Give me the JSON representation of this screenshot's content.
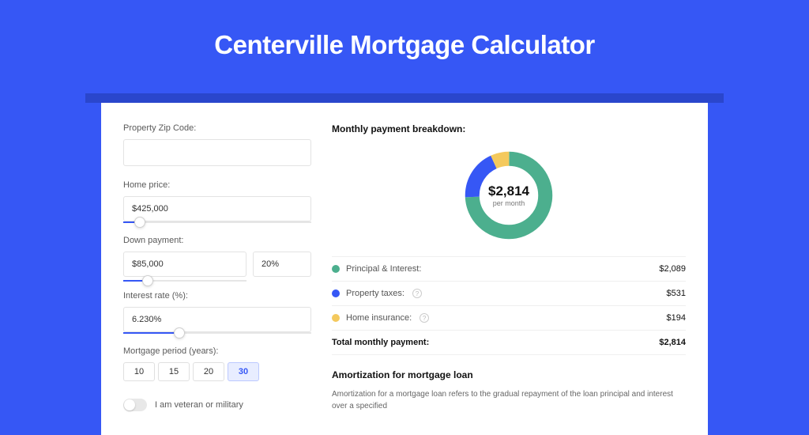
{
  "page": {
    "title": "Centerville Mortgage Calculator",
    "background_color": "#3657f5",
    "card_bg": "#ffffff",
    "shadow_color": "#2a46cc"
  },
  "form": {
    "zip": {
      "label": "Property Zip Code:",
      "value": ""
    },
    "home_price": {
      "label": "Home price:",
      "value": "$425,000",
      "slider": {
        "fill_pct": 9,
        "thumb_pct": 9
      }
    },
    "down_payment": {
      "label": "Down payment:",
      "amount": "$85,000",
      "pct": "20%",
      "slider": {
        "fill_pct": 20,
        "thumb_pct": 20
      }
    },
    "interest": {
      "label": "Interest rate (%):",
      "value": "6.230%",
      "slider": {
        "fill_pct": 30,
        "thumb_pct": 30
      }
    },
    "period": {
      "label": "Mortgage period (years):",
      "options": [
        "10",
        "15",
        "20",
        "30"
      ],
      "selected": "30"
    },
    "veteran": {
      "label": "I am veteran or military",
      "checked": false
    }
  },
  "breakdown": {
    "title": "Monthly payment breakdown:",
    "donut": {
      "type": "pie",
      "total": "$2,814",
      "sub": "per month",
      "ring_width": 18,
      "background": "#ffffff",
      "slices": [
        {
          "label": "Principal & Interest:",
          "value": "$2,089",
          "color": "#4caf8e",
          "percent": 74.2
        },
        {
          "label": "Property taxes:",
          "value": "$531",
          "color": "#3657f5",
          "percent": 18.9,
          "info": true
        },
        {
          "label": "Home insurance:",
          "value": "$194",
          "color": "#f4c95d",
          "percent": 6.9,
          "info": true
        }
      ]
    },
    "total_row": {
      "label": "Total monthly payment:",
      "value": "$2,814"
    }
  },
  "amortization": {
    "title": "Amortization for mortgage loan",
    "text": "Amortization for a mortgage loan refers to the gradual repayment of the loan principal and interest over a specified"
  }
}
